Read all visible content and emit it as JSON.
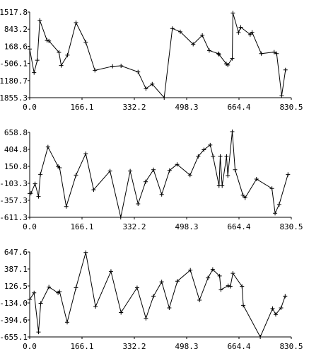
{
  "chart_data": [
    {
      "type": "line",
      "title": "",
      "xlabel": "",
      "ylabel": "",
      "xlim": [
        0.0,
        830.5
      ],
      "ylim": [
        -1855.3,
        1517.8
      ],
      "x_tick_labels": [
        "0.0",
        "166.1",
        "332.2",
        "498.3",
        "664.4",
        "830.5"
      ],
      "y_tick_labels": [
        "1517.8",
        "843.2",
        "168.6",
        "-506.1",
        "-1180.7",
        "-1855.3"
      ],
      "marker": "+",
      "grid": false,
      "series": [
        {
          "x": [
            0,
            14,
            24,
            32,
            55,
            61,
            93,
            100,
            120,
            147,
            178,
            207,
            263,
            290,
            344,
            369,
            389,
            427,
            453,
            478,
            519,
            548,
            570,
            599,
            601,
            624,
            629,
            643,
            645,
            663,
            670,
            700,
            706,
            735,
            776,
            784,
            800,
            812
          ],
          "y": [
            60,
            -870,
            -380,
            1190,
            400,
            380,
            -70,
            -590,
            -180,
            1100,
            330,
            -780,
            -620,
            -600,
            -840,
            -1500,
            -1320,
            -1855,
            870,
            740,
            250,
            600,
            2,
            -120,
            -150,
            -520,
            -570,
            -310,
            1480,
            710,
            920,
            630,
            720,
            -120,
            -60,
            -120,
            -1780,
            -760
          ]
        }
      ]
    },
    {
      "type": "line",
      "title": "",
      "xlabel": "",
      "ylabel": "",
      "xlim": [
        0.0,
        830.5
      ],
      "ylim": [
        -611.3,
        658.8
      ],
      "x_tick_labels": [
        "0.0",
        "166.1",
        "332.2",
        "498.3",
        "664.4",
        "830.5"
      ],
      "y_tick_labels": [
        "658.8",
        "404.8",
        "150.8",
        "-103.3",
        "-357.3",
        "-611.3"
      ],
      "marker": "+",
      "grid": false,
      "series": [
        {
          "x": [
            0,
            4,
            17,
            28,
            34,
            58,
            90,
            95,
            116,
            147,
            178,
            203,
            255,
            289,
            319,
            344,
            368,
            393,
            419,
            444,
            468,
            509,
            535,
            553,
            573,
            582,
            601,
            605,
            611,
            625,
            629,
            643,
            652,
            677,
            684,
            720,
            769,
            779,
            792,
            820
          ],
          "y": [
            -255,
            -251,
            -110,
            -300,
            30,
            440,
            150,
            130,
            -450,
            20,
            340,
            -200,
            80,
            -611,
            80,
            -410,
            -80,
            100,
            -270,
            90,
            180,
            20,
            300,
            400,
            470,
            300,
            -140,
            300,
            -140,
            300,
            10,
            670,
            100,
            -280,
            -320,
            -40,
            -180,
            -550,
            -420,
            30
          ]
        }
      ]
    },
    {
      "type": "line",
      "title": "",
      "xlabel": "",
      "ylabel": "",
      "xlim": [
        0.0,
        830.5
      ],
      "ylim": [
        -655.1,
        647.6
      ],
      "x_tick_labels": [
        "0.0",
        "166.1",
        "332.2",
        "498.3",
        "664.4",
        "830.5"
      ],
      "y_tick_labels": [
        "647.6",
        "387.1",
        "126.5",
        "-134.0",
        "-394.6",
        "-655.1"
      ],
      "marker": "+",
      "grid": false,
      "series": [
        {
          "x": [
            0,
            14,
            28,
            35,
            61,
            90,
            95,
            119,
            147,
            178,
            209,
            258,
            290,
            341,
            369,
            393,
            419,
            443,
            469,
            510,
            539,
            566,
            581,
            603,
            607,
            630,
            637,
            645,
            674,
            678,
            732,
            771,
            781,
            798,
            811
          ],
          "y": [
            -80,
            20,
            -580,
            -140,
            110,
            20,
            40,
            -430,
            100,
            640,
            -190,
            350,
            -280,
            100,
            -370,
            -30,
            190,
            -210,
            200,
            370,
            -90,
            250,
            380,
            280,
            70,
            130,
            120,
            320,
            120,
            -170,
            -655,
            -220,
            -310,
            -210,
            -30
          ]
        }
      ]
    }
  ]
}
